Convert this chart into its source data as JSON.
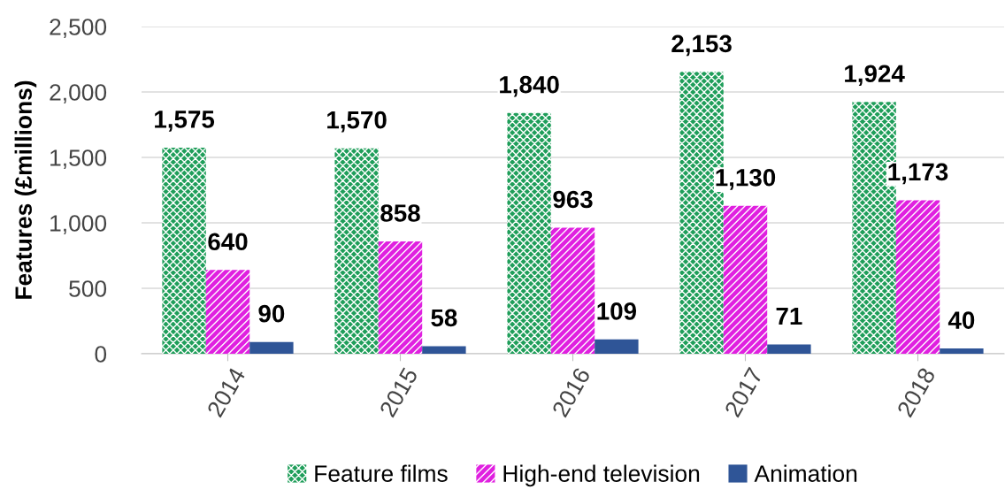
{
  "chart_data": {
    "type": "bar",
    "ylabel": "Features (£millions)",
    "categories": [
      "2014",
      "2015",
      "2016",
      "2017",
      "2018"
    ],
    "series": [
      {
        "name": "Feature films",
        "color": "#1f9e5a",
        "values": [
          1575,
          1570,
          1840,
          2153,
          1924
        ],
        "value_labels": [
          "1,575",
          "1,570",
          "1,840",
          "2,153",
          "1,924"
        ]
      },
      {
        "name": "High-end television",
        "color": "#e020e0",
        "values": [
          640,
          858,
          963,
          1130,
          1173
        ],
        "value_labels": [
          "640",
          "858",
          "963",
          "1,130",
          "1,173"
        ]
      },
      {
        "name": "Animation",
        "color": "#2f5597",
        "values": [
          90,
          58,
          109,
          71,
          40
        ],
        "value_labels": [
          "90",
          "58",
          "109",
          "71",
          "40"
        ]
      }
    ],
    "ylim": [
      0,
      2500
    ],
    "yticks": [
      0,
      {
        "value": 500,
        "label": "500"
      },
      {
        "value": 1000,
        "label": "1,000"
      },
      {
        "value": 1500,
        "label": "1,500"
      },
      {
        "value": 2000,
        "label": "2,000"
      },
      {
        "value": 2500,
        "label": "2,500"
      }
    ],
    "grid": "y",
    "legend": "bottom"
  }
}
